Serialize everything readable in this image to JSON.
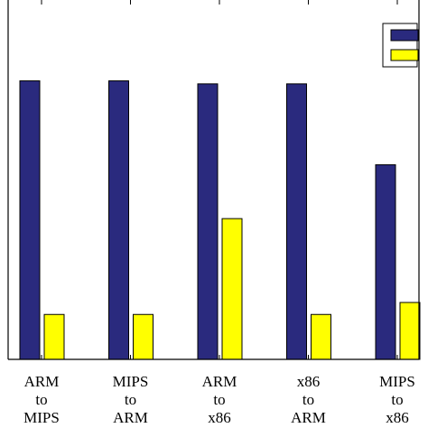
{
  "chart_data": {
    "type": "bar",
    "categories": [
      [
        "ARM",
        "to",
        "MIPS"
      ],
      [
        "MIPS",
        "to",
        "ARM"
      ],
      [
        "ARM",
        "to",
        "x86"
      ],
      [
        "x86",
        "to",
        "ARM"
      ],
      [
        "MIPS",
        "to",
        "x86"
      ]
    ],
    "series": [
      {
        "values": [
          0.93,
          0.93,
          0.92,
          0.92,
          0.65
        ],
        "color": "#2a2a7e"
      },
      {
        "values": [
          0.15,
          0.15,
          0.47,
          0.15,
          0.19
        ],
        "color": "#ffff00"
      }
    ],
    "ylim": [
      0,
      1.2
    ],
    "legend": "top-right",
    "grid": false
  }
}
